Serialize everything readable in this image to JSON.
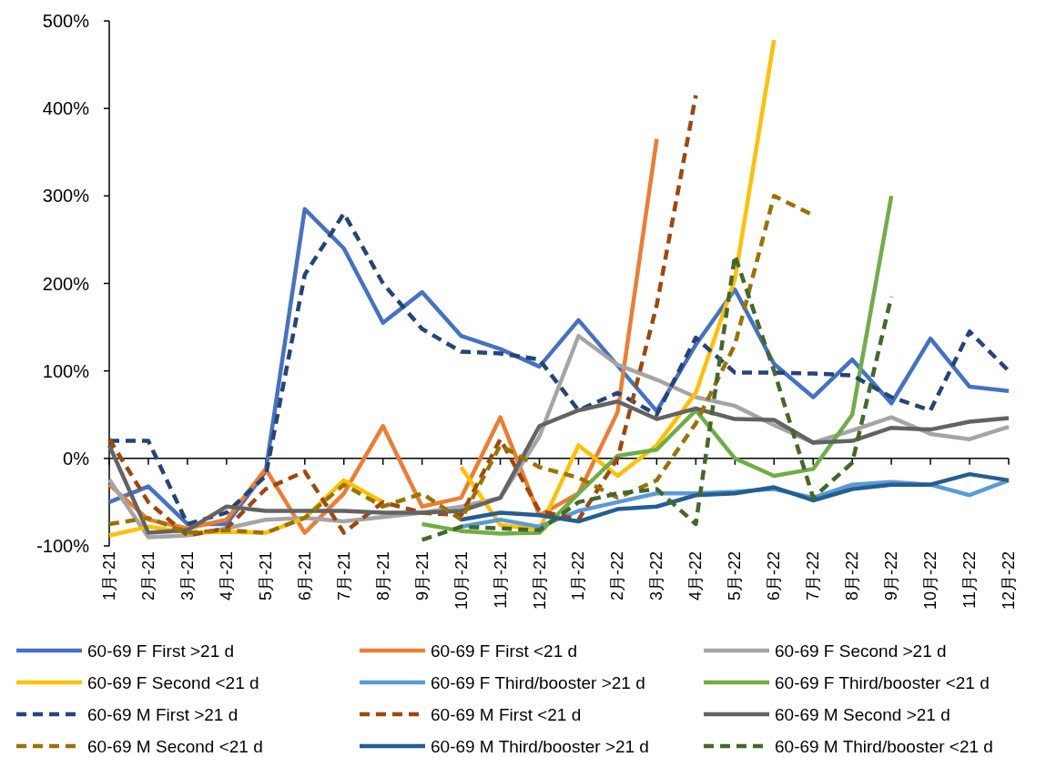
{
  "chart_data": {
    "type": "line",
    "categories": [
      "1月-21",
      "2月-21",
      "3月-21",
      "4月-21",
      "5月-21",
      "6月-21",
      "7月-21",
      "8月-21",
      "9月-21",
      "10月-21",
      "11月-21",
      "12月-21",
      "1月-22",
      "2月-22",
      "3月-22",
      "4月-22",
      "5月-22",
      "6月-22",
      "7月-22",
      "8月-22",
      "9月-22",
      "10月-22",
      "11月-22",
      "12月-22"
    ],
    "ylim": [
      -100,
      500
    ],
    "yticks": [
      {
        "value": -100,
        "label": "-100%"
      },
      {
        "value": 0,
        "label": "0%"
      },
      {
        "value": 100,
        "label": "100%"
      },
      {
        "value": 200,
        "label": "200%"
      },
      {
        "value": 300,
        "label": "300%"
      },
      {
        "value": 400,
        "label": "400%"
      },
      {
        "value": 500,
        "label": "500%"
      }
    ],
    "legend": "bottom",
    "marker": "none",
    "series": [
      {
        "name": "60-69 F First >21 d",
        "color": "#4472c4",
        "line_style": "solid",
        "values": [
          -50,
          -32,
          -75,
          -75,
          -15,
          285,
          240,
          155,
          190,
          140,
          125,
          105,
          158,
          106,
          54,
          130,
          193,
          108,
          70,
          113,
          63,
          137,
          82,
          77
        ]
      },
      {
        "name": "60-69 F First <21 d",
        "color": "#ed7d31",
        "line_style": "solid",
        "values": [
          -30,
          -70,
          -80,
          -70,
          -12,
          -85,
          -40,
          37,
          -55,
          -45,
          47,
          -65,
          -40,
          53,
          365,
          null,
          null,
          null,
          null,
          null,
          null,
          null,
          null,
          null
        ]
      },
      {
        "name": "60-69 F Second >21 d",
        "color": "#a5a5a5",
        "line_style": "solid",
        "values": [
          -24,
          -90,
          -88,
          -80,
          -70,
          -68,
          -72,
          -67,
          -62,
          -55,
          -45,
          25,
          140,
          107,
          90,
          70,
          60,
          38,
          18,
          32,
          47,
          28,
          22,
          36
        ]
      },
      {
        "name": "60-69 F Second <21 d",
        "color": "#ffc000",
        "line_style": "solid",
        "values": [
          -88,
          -78,
          -85,
          -84,
          -85,
          -68,
          -25,
          -50,
          null,
          -10,
          -76,
          -81,
          15,
          -20,
          15,
          75,
          205,
          478,
          null,
          null,
          null,
          null,
          null,
          null
        ]
      },
      {
        "name": "60-69 F Third/booster >21 d",
        "color": "#5b9bd5",
        "line_style": "solid",
        "values": [
          null,
          null,
          null,
          null,
          null,
          null,
          null,
          null,
          null,
          -78,
          -70,
          -78,
          -60,
          -50,
          -40,
          -40,
          -38,
          -35,
          -45,
          -30,
          -27,
          -30,
          -42,
          -25
        ]
      },
      {
        "name": "60-69 F Third/booster <21 d",
        "color": "#70ad47",
        "line_style": "solid",
        "values": [
          null,
          null,
          null,
          null,
          null,
          null,
          null,
          null,
          -75,
          -83,
          -86,
          -85,
          -40,
          3,
          10,
          55,
          0,
          -20,
          -12,
          50,
          300,
          null,
          null,
          null
        ]
      },
      {
        "name": "60-69 M First >21 d",
        "color": "#264478",
        "line_style": "dashed",
        "values": [
          20,
          20,
          -75,
          -62,
          -20,
          210,
          280,
          200,
          148,
          122,
          120,
          113,
          55,
          75,
          50,
          138,
          98,
          98,
          97,
          95,
          70,
          55,
          145,
          100
        ]
      },
      {
        "name": "60-69 M First <21 d",
        "color": "#9e480e",
        "line_style": "dashed",
        "values": [
          22,
          -50,
          -88,
          -80,
          -35,
          -15,
          -85,
          -50,
          -62,
          -65,
          22,
          -60,
          -70,
          0,
          175,
          415,
          null,
          null,
          null,
          null,
          null,
          null,
          null,
          null
        ]
      },
      {
        "name": "60-69 M Second >21 d",
        "color": "#636363",
        "line_style": "solid",
        "values": [
          15,
          -85,
          -82,
          -55,
          -60,
          -60,
          -60,
          -62,
          -62,
          -60,
          -45,
          37,
          55,
          65,
          45,
          57,
          45,
          44,
          18,
          20,
          35,
          33,
          42,
          46
        ]
      },
      {
        "name": "60-69 M Second <21 d",
        "color": "#997300",
        "line_style": "dashed",
        "values": [
          -75,
          -68,
          -85,
          -82,
          -85,
          -68,
          -30,
          -55,
          -40,
          -70,
          15,
          -10,
          -22,
          -45,
          -25,
          40,
          130,
          300,
          278,
          null,
          null,
          null,
          null,
          null
        ]
      },
      {
        "name": "60-69 M Third/booster >21 d",
        "color": "#255e91",
        "line_style": "solid",
        "values": [
          null,
          null,
          null,
          null,
          null,
          null,
          null,
          null,
          null,
          -70,
          -62,
          -65,
          -72,
          -58,
          -55,
          -42,
          -40,
          -33,
          -48,
          -35,
          -30,
          -30,
          -18,
          -25
        ]
      },
      {
        "name": "60-69 M Third/booster <21 d",
        "color": "#43682b",
        "line_style": "dashed",
        "values": [
          null,
          null,
          null,
          null,
          null,
          null,
          null,
          null,
          -93,
          -78,
          -80,
          -82,
          -50,
          -40,
          -35,
          -75,
          232,
          100,
          -45,
          -5,
          185,
          null,
          null,
          null
        ]
      }
    ]
  }
}
